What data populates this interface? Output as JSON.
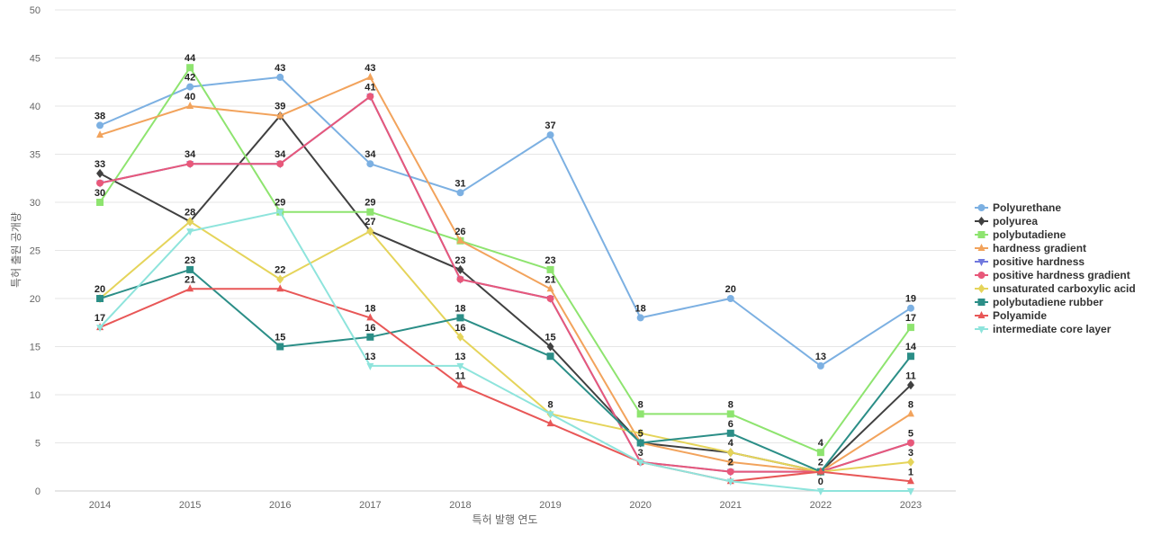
{
  "chart_data": {
    "type": "line",
    "x": [
      "2014",
      "2015",
      "2016",
      "2017",
      "2018",
      "2019",
      "2020",
      "2021",
      "2022",
      "2023"
    ],
    "xlabel": "특허 발행 연도",
    "ylabel": "특허 출원 공개량",
    "ylim": [
      0,
      50
    ],
    "yticks": [
      0,
      5,
      10,
      15,
      20,
      25,
      30,
      35,
      40,
      45,
      50
    ],
    "grid": true,
    "legend_position": "right",
    "series": [
      {
        "name": "Polyurethane",
        "color": "#7cb0e2",
        "marker": "circle",
        "values": [
          38,
          42,
          43,
          34,
          31,
          37,
          18,
          20,
          13,
          19
        ],
        "labels_shown": [
          true,
          true,
          true,
          true,
          true,
          true,
          true,
          true,
          true,
          true
        ]
      },
      {
        "name": "polyurea",
        "color": "#404040",
        "marker": "diamond",
        "values": [
          33,
          28,
          39,
          27,
          23,
          15,
          5,
          4,
          2,
          11
        ],
        "labels_shown": [
          true,
          false,
          true,
          true,
          true,
          true,
          true,
          true,
          true,
          true
        ]
      },
      {
        "name": "polybutadiene",
        "color": "#8ee46f",
        "marker": "square",
        "values": [
          30,
          44,
          29,
          29,
          26,
          23,
          8,
          8,
          4,
          17
        ],
        "labels_shown": [
          true,
          true,
          true,
          true,
          true,
          true,
          true,
          true,
          true,
          true
        ]
      },
      {
        "name": "hardness gradient",
        "color": "#f2a35c",
        "marker": "triangle",
        "values": [
          37,
          40,
          39,
          43,
          26,
          21,
          5,
          3,
          2,
          8
        ],
        "labels_shown": [
          false,
          true,
          false,
          true,
          false,
          true,
          false,
          false,
          false,
          true
        ]
      },
      {
        "name": "positive hardness",
        "color": "#7078de",
        "marker": "triangle-down",
        "values": [
          32,
          34,
          34,
          41,
          22,
          20,
          3,
          2,
          2,
          5
        ],
        "labels_shown": [
          false,
          false,
          false,
          false,
          false,
          false,
          false,
          false,
          false,
          false
        ]
      },
      {
        "name": "positive hardness gradient",
        "color": "#e8587a",
        "marker": "circle",
        "values": [
          32,
          34,
          34,
          41,
          22,
          20,
          3,
          2,
          2,
          5
        ],
        "labels_shown": [
          false,
          true,
          true,
          true,
          false,
          false,
          true,
          true,
          false,
          true
        ]
      },
      {
        "name": "unsaturated carboxylic acid",
        "color": "#e5d45a",
        "marker": "diamond",
        "values": [
          20,
          28,
          22,
          27,
          16,
          8,
          6,
          4,
          2,
          3
        ],
        "labels_shown": [
          true,
          true,
          true,
          false,
          true,
          true,
          false,
          false,
          false,
          true
        ]
      },
      {
        "name": "polybutadiene rubber",
        "color": "#2b8e87",
        "marker": "square",
        "values": [
          20,
          23,
          15,
          16,
          18,
          14,
          5,
          6,
          2,
          14
        ],
        "labels_shown": [
          false,
          true,
          true,
          true,
          true,
          false,
          false,
          true,
          false,
          true
        ]
      },
      {
        "name": "Polyamide",
        "color": "#e85757",
        "marker": "triangle",
        "values": [
          17,
          21,
          21,
          18,
          11,
          7,
          3,
          1,
          2,
          1
        ],
        "labels_shown": [
          true,
          true,
          false,
          true,
          true,
          false,
          false,
          false,
          false,
          true
        ]
      },
      {
        "name": "intermediate core layer",
        "color": "#8ee4dc",
        "marker": "triangle-down",
        "values": [
          17,
          27,
          29,
          13,
          13,
          8,
          3,
          1,
          0,
          0
        ],
        "labels_shown": [
          false,
          false,
          false,
          true,
          true,
          false,
          false,
          false,
          true,
          false
        ]
      }
    ]
  }
}
